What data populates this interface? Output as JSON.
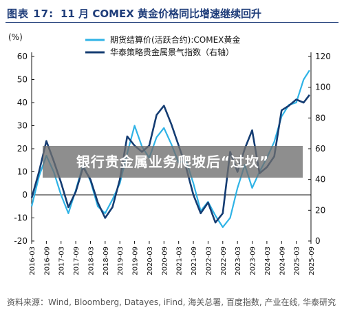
{
  "header": {
    "figure_number": "图表 17:",
    "title": "11 月 COMEX 黄金价格同比增速继续回升"
  },
  "colors": {
    "series_light": "#2fb3e6",
    "series_dark": "#143c72",
    "title": "#1f3d7a",
    "banner_bg": "rgba(110,110,110,0.78)"
  },
  "chart_data": {
    "type": "line",
    "left_axis_label": "(%)",
    "ylim_left": [
      -20,
      60
    ],
    "yticks_left": [
      -20,
      -10,
      0,
      10,
      20,
      30,
      40,
      50,
      60
    ],
    "ylim_right": [
      0,
      120
    ],
    "yticks_right": [
      0,
      20,
      40,
      60,
      80,
      100,
      120
    ],
    "x_tick_labels": [
      "2016-03",
      "2016-09",
      "2017-03",
      "2017-09",
      "2018-03",
      "2018-09",
      "2019-03",
      "2019-09",
      "2020-03",
      "2020-09",
      "2021-03",
      "2021-09",
      "2022-03",
      "2022-09",
      "2023-03",
      "2023-09",
      "2024-03",
      "2024-09",
      "2025-03",
      "2025-09"
    ],
    "grid": false,
    "legend_position": "top",
    "series": [
      {
        "name": "期货结算价(活跃合约):COMEX黄金",
        "axis": "left",
        "x": [
          0,
          0.5,
          1,
          1.5,
          2,
          2.5,
          3,
          3.5,
          4,
          4.5,
          5,
          5.5,
          6,
          6.5,
          7,
          7.5,
          8,
          8.5,
          9,
          9.5,
          10,
          10.5,
          11,
          11.5,
          12,
          12.5,
          13,
          13.5,
          14,
          14.5,
          15,
          15.5,
          16,
          16.5,
          17,
          17.5,
          18,
          18.5,
          18.9
        ],
        "values": [
          -5,
          8,
          17,
          10,
          0,
          -8,
          2,
          13,
          6,
          -5,
          -8,
          -2,
          5,
          18,
          30,
          21,
          16,
          25,
          29,
          22,
          14,
          15,
          5,
          -7,
          -3,
          -9,
          -14,
          -10,
          3,
          13,
          3,
          10,
          16,
          23,
          34,
          39,
          40,
          50,
          54
        ]
      },
      {
        "name": "华泰策略贵金属景气指数（右轴）",
        "axis": "right",
        "x": [
          0,
          0.5,
          1,
          1.5,
          2,
          2.5,
          3,
          3.5,
          4,
          4.5,
          5,
          5.5,
          6,
          6.5,
          7,
          7.5,
          8,
          8.5,
          9,
          9.5,
          10,
          10.5,
          11,
          11.5,
          12,
          12.5,
          13,
          13.5,
          14,
          14.5,
          15,
          15.5,
          16,
          16.5,
          17,
          17.5,
          18,
          18.5,
          18.9
        ],
        "values": [
          28,
          45,
          65,
          52,
          38,
          22,
          32,
          48,
          40,
          25,
          15,
          22,
          40,
          68,
          62,
          58,
          62,
          82,
          88,
          76,
          62,
          48,
          30,
          18,
          25,
          12,
          18,
          58,
          45,
          60,
          72,
          44,
          48,
          55,
          85,
          88,
          92,
          90,
          95
        ]
      }
    ]
  },
  "banner": {
    "text": "银行贵金属业务爬坡后“过坎”"
  },
  "source": {
    "text": "资料来源：Wind, Bloomberg, Datayes, iFind, 海关总署, 百度指数, 产业在线, 华泰研究"
  }
}
